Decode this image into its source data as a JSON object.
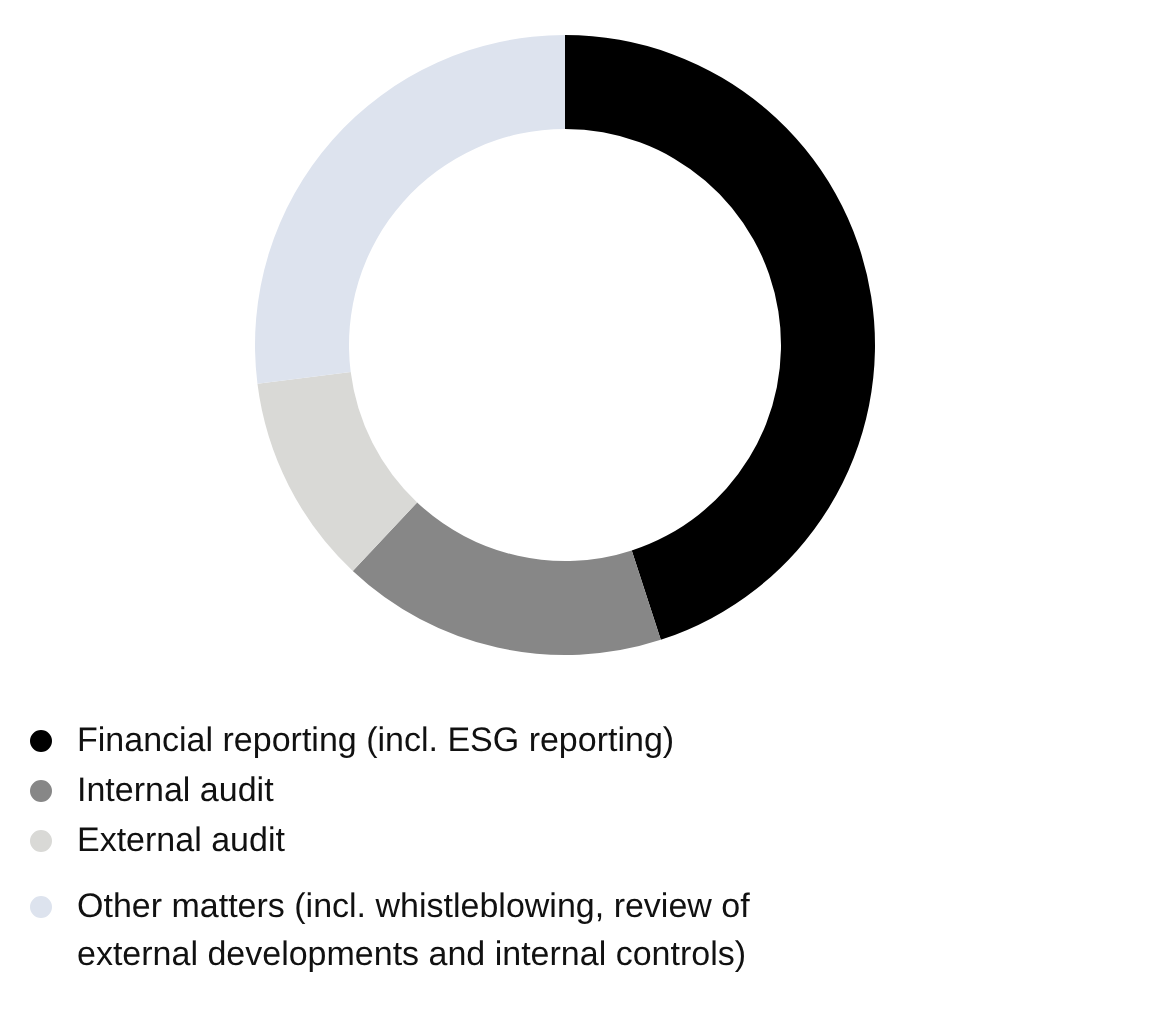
{
  "chart_data": {
    "type": "donut",
    "categories": [
      "Financial reporting (incl. ESG reporting)",
      "Internal audit",
      "External audit",
      "Other matters (incl. whistleblowing, review of external developments and internal controls)"
    ],
    "values": [
      45,
      17,
      11,
      27
    ],
    "colors": [
      "#000000",
      "#878787",
      "#d9d9d6",
      "#dde3ee"
    ],
    "legend": "bottom"
  }
}
